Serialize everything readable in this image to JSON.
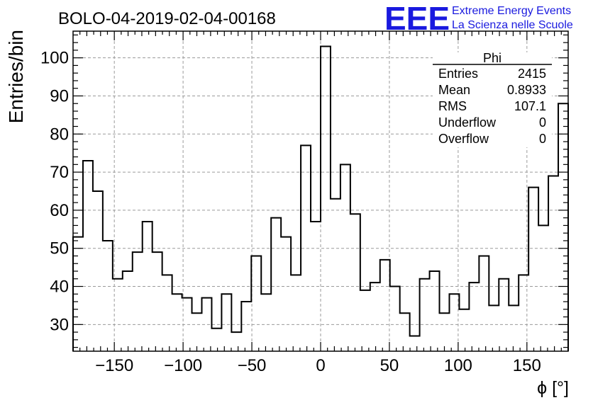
{
  "chart_data": {
    "type": "histogram",
    "title": "BOLO-04-2019-02-04-00168",
    "xlabel": "ϕ [°]",
    "ylabel": "Entries/bin",
    "xlim": [
      -180,
      180
    ],
    "ylim": [
      23,
      107
    ],
    "bin_width": 7.2,
    "grid": true,
    "x_ticks": [
      -150,
      -100,
      -50,
      0,
      50,
      100,
      150
    ],
    "y_ticks": [
      30,
      40,
      50,
      60,
      70,
      80,
      90,
      100
    ],
    "values": [
      53,
      73,
      65,
      52,
      42,
      44,
      49,
      57,
      49,
      43,
      38,
      37,
      33,
      37,
      29,
      38,
      28,
      36,
      48,
      38,
      58,
      53,
      43,
      77,
      57,
      103,
      63,
      72,
      59,
      39,
      41,
      47,
      40,
      33,
      27,
      42,
      44,
      33,
      38,
      34,
      41,
      48,
      35,
      42,
      35,
      43,
      66,
      56,
      69,
      88
    ]
  },
  "stats_box": {
    "title": "Phi",
    "rows": [
      {
        "label": "Entries",
        "value": "2415"
      },
      {
        "label": "Mean",
        "value": "0.8933"
      },
      {
        "label": "RMS",
        "value": "107.1"
      },
      {
        "label": "Underflow",
        "value": "0"
      },
      {
        "label": "Overflow",
        "value": "0"
      }
    ]
  },
  "logo": {
    "mark": "EEE",
    "line1": "Extreme Energy Events",
    "line2": "La Scienza nelle Scuole",
    "color": "#1a1adf"
  }
}
